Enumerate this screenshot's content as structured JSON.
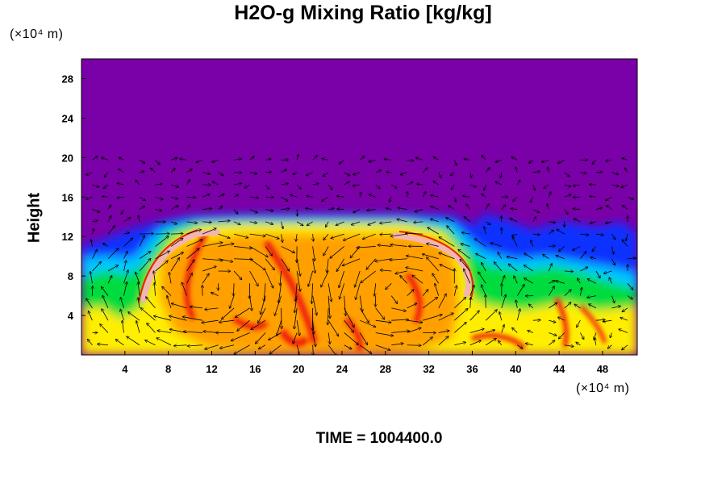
{
  "chart_data": {
    "type": "heatmap",
    "title": "H2O-g Mixing Ratio [kg/kg]",
    "ylabel": "Height",
    "x_unit": "(×10⁴ m)",
    "y_unit": "(×10⁴ m)",
    "xlim": [
      0,
      51.2
    ],
    "ylim": [
      0,
      30
    ],
    "x_ticks": [
      4,
      8,
      12,
      16,
      20,
      24,
      28,
      32,
      36,
      40,
      44,
      48
    ],
    "y_ticks": [
      4,
      8,
      12,
      16,
      20,
      24,
      28
    ],
    "x_tick_labels": [
      "4",
      "8",
      "12",
      "16",
      "20",
      "24",
      "28",
      "32",
      "36",
      "40",
      "44",
      "48"
    ],
    "y_tick_labels": [
      "4",
      "8",
      "12",
      "16",
      "20",
      "24",
      "28"
    ],
    "overlay": "wind vectors",
    "annotation": "TIME = 1004400.0",
    "colors": {
      "background": "#7a00a8",
      "blue": "#0a32ff",
      "cyan": "#00c8ff",
      "green": "#00dc3c",
      "yellow": "#ffee00",
      "orange": "#ffa000",
      "red": "#f01e0a",
      "pink": "#f5b4b4"
    }
  }
}
